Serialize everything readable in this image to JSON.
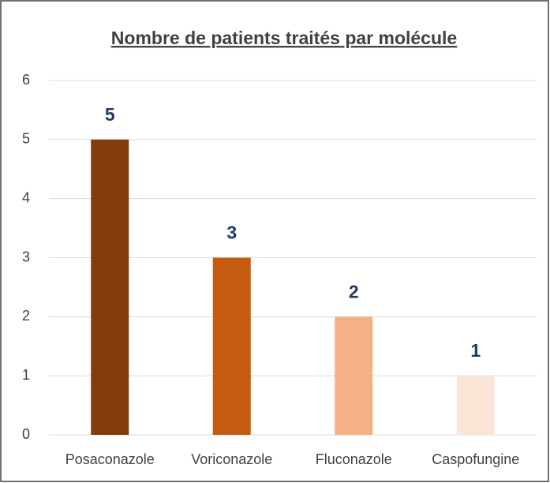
{
  "chart_data": {
    "type": "bar",
    "title": "Nombre de patients traités par molécule",
    "categories": [
      "Posaconazole",
      "Voriconazole",
      "Fluconazole",
      "Caspofungine"
    ],
    "values": [
      5,
      3,
      2,
      1
    ],
    "colors": [
      "#843c0c",
      "#c55a11",
      "#f4b183",
      "#fbe5d6"
    ],
    "ylim": [
      0,
      6
    ],
    "yticks": [
      0,
      1,
      2,
      3,
      4,
      5,
      6
    ],
    "grid": true,
    "data_labels": true
  }
}
